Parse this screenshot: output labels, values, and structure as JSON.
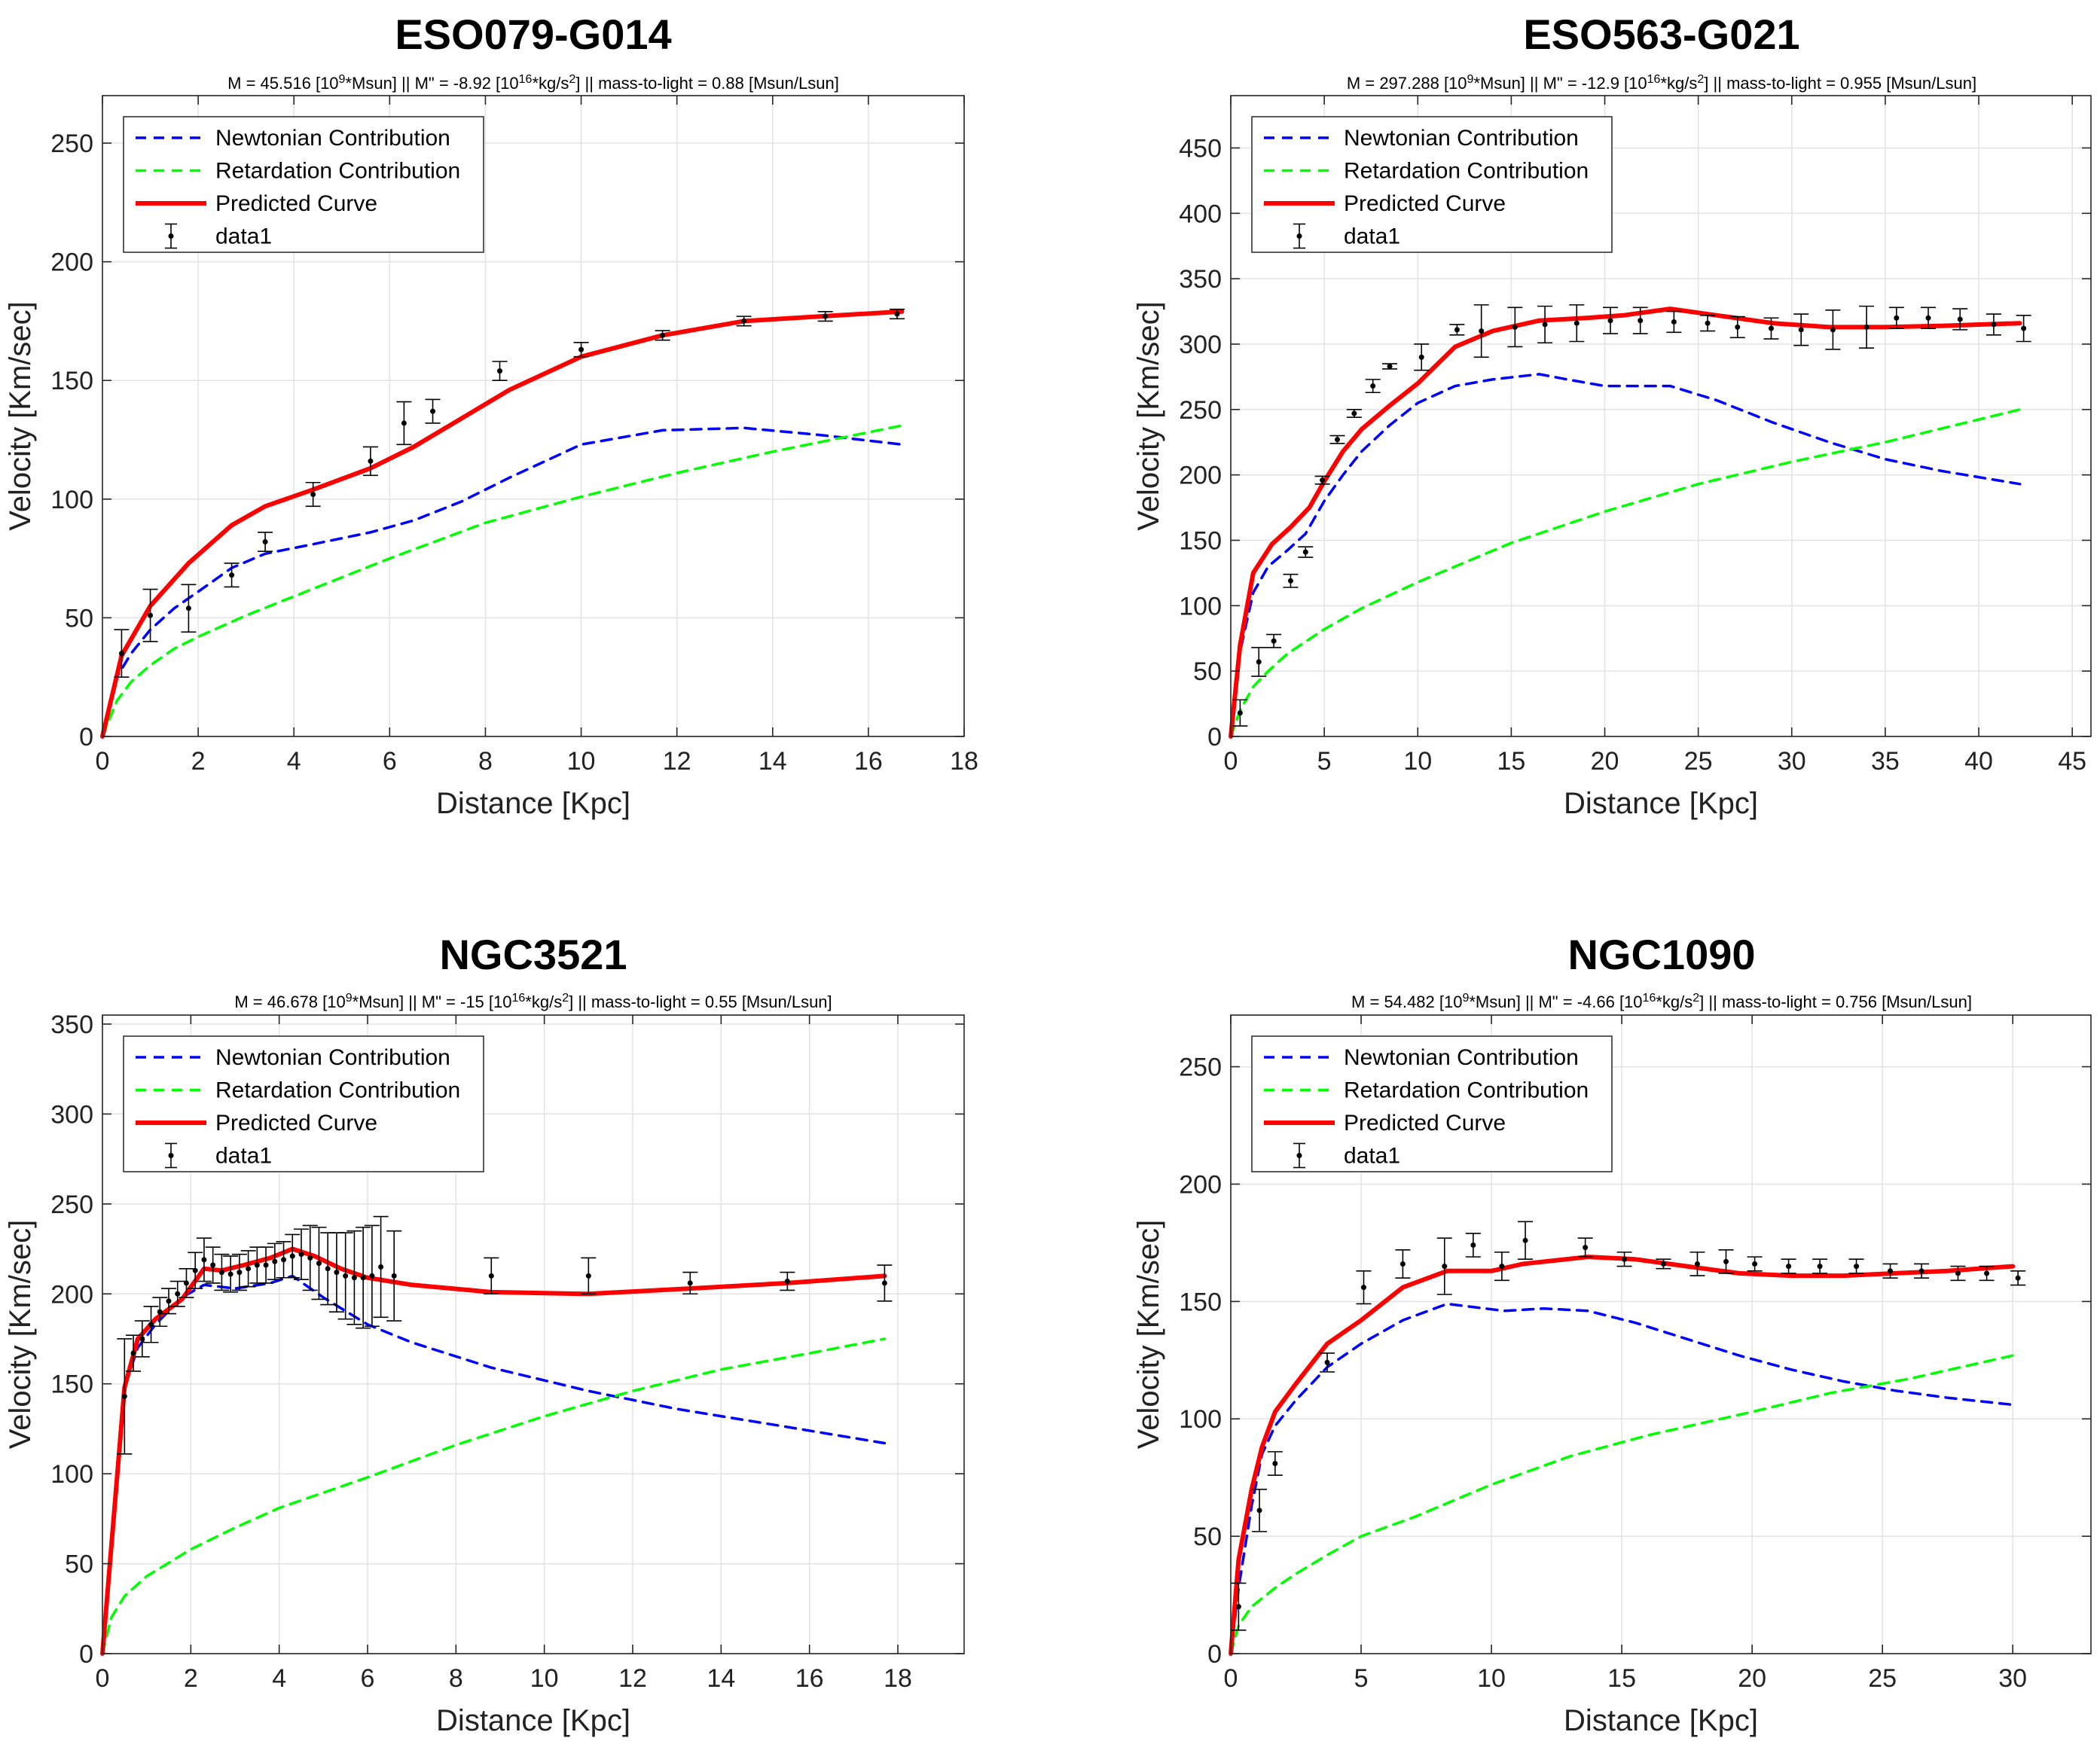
{
  "chart_data": [
    {
      "type": "line",
      "title": "ESO079-G014",
      "subtitle": {
        "mass": "M = 45.516 [10",
        "mass_sup": "9",
        "mass_unit": "*Msun]",
        "sep1": "||",
        "mdd": "M\" = -8.92 [10",
        "mdd_sup": "16",
        "mdd_unit": "*kg/s",
        "mdd_sup2": "2",
        "mdd_close": "]",
        "sep2": "||",
        "ml": "mass-to-light = 0.88 [Msun/Lsun]"
      },
      "xlabel": "Distance  [Kpc]",
      "ylabel": "Velocity  [Km/sec]",
      "xlim": [
        0,
        18
      ],
      "ylim": [
        0,
        270
      ],
      "xticks": [
        0,
        2,
        4,
        6,
        8,
        10,
        12,
        14,
        16,
        18
      ],
      "yticks": [
        0,
        50,
        100,
        150,
        200,
        250
      ],
      "legend": [
        "Newtonian Contribution",
        "Retardation Contribution",
        "Predicted Curve",
        "data1"
      ],
      "legend_position": "top-left",
      "grid": true,
      "series": [
        {
          "name": "Newtonian Contribution",
          "style": "dashed",
          "color": "#0000ff",
          "x": [
            0,
            0.3,
            0.6,
            1,
            1.5,
            2,
            2.7,
            3.4,
            4.4,
            5.6,
            6.5,
            7.5,
            8.5,
            10,
            11.7,
            13.4,
            15,
            16.7
          ],
          "y": [
            0,
            25,
            35,
            45,
            54,
            61,
            71,
            77,
            81,
            86,
            91,
            99,
            109,
            123,
            129,
            130,
            127,
            123
          ]
        },
        {
          "name": "Retardation Contribution",
          "style": "dashed",
          "color": "#00ff00",
          "x": [
            0,
            0.3,
            0.6,
            1,
            1.5,
            2,
            3,
            4,
            6,
            8,
            10,
            12,
            14,
            16.7
          ],
          "y": [
            0,
            15,
            23,
            30,
            37,
            42,
            51,
            59,
            75,
            90,
            101,
            111,
            120,
            131
          ]
        },
        {
          "name": "Predicted Curve",
          "style": "solid",
          "color": "#ff0000",
          "x": [
            0,
            0.4,
            1,
            1.8,
            2.7,
            3.4,
            4.4,
            5.6,
            6.5,
            7.5,
            8.5,
            10,
            11.7,
            13.4,
            15,
            16.7
          ],
          "y": [
            0,
            34,
            55,
            73,
            89,
            97,
            104,
            113,
            122,
            134,
            146,
            160,
            169,
            175,
            177,
            179
          ]
        },
        {
          "name": "data1",
          "style": "errorbar",
          "color": "#000000",
          "x": [
            0.4,
            1.0,
            1.8,
            2.7,
            3.4,
            4.4,
            5.6,
            6.3,
            6.9,
            8.3,
            10.0,
            11.7,
            13.4,
            15.1,
            16.6
          ],
          "y": [
            35,
            51,
            54,
            68,
            82,
            102,
            116,
            132,
            137,
            154,
            163,
            169,
            175,
            177,
            178
          ],
          "err": [
            10,
            11,
            10,
            5,
            4,
            5,
            6,
            9,
            5,
            4,
            3,
            2,
            2,
            2,
            2
          ]
        }
      ]
    },
    {
      "type": "line",
      "title": "ESO563-G021",
      "subtitle": {
        "mass": "M = 297.288 [10",
        "mass_sup": "9",
        "mass_unit": "*Msun]",
        "sep1": "||",
        "mdd": "M\" = -12.9 [10",
        "mdd_sup": "16",
        "mdd_unit": "*kg/s",
        "mdd_sup2": "2",
        "mdd_close": "]",
        "sep2": "||",
        "ml": "mass-to-light = 0.955 [Msun/Lsun]"
      },
      "xlabel": "Distance  [Kpc]",
      "ylabel": "Velocity  [Km/sec]",
      "xlim": [
        0,
        46
      ],
      "ylim": [
        0,
        490
      ],
      "xticks": [
        0,
        5,
        10,
        15,
        20,
        25,
        30,
        35,
        40,
        45
      ],
      "yticks": [
        0,
        50,
        100,
        150,
        200,
        250,
        300,
        350,
        400,
        450
      ],
      "legend": [
        "Newtonian Contribution",
        "Retardation Contribution",
        "Predicted Curve",
        "data1"
      ],
      "legend_position": "top-left",
      "grid": true,
      "series": [
        {
          "name": "Newtonian Contribution",
          "style": "dashed",
          "color": "#0000ff",
          "x": [
            0,
            0.5,
            1.2,
            2,
            3,
            4,
            5,
            6,
            7,
            8.5,
            10,
            12,
            14,
            16.5,
            18,
            20,
            23.5,
            26,
            29,
            32,
            35,
            38,
            42.2
          ],
          "y": [
            0,
            65,
            110,
            130,
            142,
            155,
            180,
            200,
            218,
            238,
            255,
            268,
            273,
            277,
            273,
            268,
            268,
            257,
            240,
            225,
            212,
            203,
            193
          ]
        },
        {
          "name": "Retardation Contribution",
          "style": "dashed",
          "color": "#00ff00",
          "x": [
            0,
            0.5,
            1.2,
            2,
            3,
            5,
            7,
            10,
            15,
            20,
            25,
            30,
            35,
            42.2
          ],
          "y": [
            0,
            20,
            38,
            50,
            63,
            82,
            98,
            118,
            148,
            172,
            193,
            210,
            225,
            250
          ]
        },
        {
          "name": "Predicted Curve",
          "style": "solid",
          "color": "#ff0000",
          "x": [
            0,
            0.5,
            1.2,
            2.2,
            3.2,
            4.2,
            5,
            6,
            7,
            8.5,
            10,
            12,
            14,
            16.5,
            19,
            21,
            23.5,
            26,
            29,
            32,
            35,
            38,
            42.2
          ],
          "y": [
            0,
            70,
            125,
            147,
            160,
            175,
            195,
            218,
            235,
            253,
            270,
            298,
            310,
            318,
            320,
            322,
            327,
            322,
            316,
            313,
            313,
            314,
            316
          ]
        },
        {
          "name": "data1",
          "style": "errorbar",
          "color": "#000000",
          "x": [
            0.5,
            1.5,
            2.3,
            3.2,
            4.0,
            4.9,
            5.7,
            6.6,
            7.6,
            8.5,
            10.2,
            12.1,
            13.4,
            15.2,
            16.8,
            18.5,
            20.3,
            21.9,
            23.7,
            25.5,
            27.1,
            28.9,
            30.5,
            32.2,
            34.0,
            35.6,
            37.3,
            39.0,
            40.8,
            42.4
          ],
          "y": [
            18,
            57,
            73,
            119,
            141,
            196,
            227,
            247,
            268,
            283,
            290,
            311,
            310,
            313,
            315,
            316,
            318,
            318,
            317,
            316,
            313,
            312,
            311,
            311,
            313,
            320,
            320,
            319,
            315,
            312
          ]
        },
        {
          "name": "data1_err",
          "style": "errorbar_err",
          "err": [
            10,
            11,
            5,
            5,
            4,
            3,
            3,
            3,
            5,
            2,
            10,
            4,
            20,
            15,
            14,
            14,
            10,
            10,
            8,
            6,
            8,
            8,
            12,
            15,
            16,
            8,
            8,
            8,
            8,
            10
          ]
        }
      ]
    },
    {
      "type": "line",
      "title": "NGC3521",
      "subtitle": {
        "mass": "M = 46.678 [10",
        "mass_sup": "9",
        "mass_unit": "*Msun]",
        "sep1": "||",
        "mdd": "M\" = -15 [10",
        "mdd_sup": "16",
        "mdd_unit": "*kg/s",
        "mdd_sup2": "2",
        "mdd_close": "]",
        "sep2": "||",
        "ml": "mass-to-light = 0.55 [Msun/Lsun]"
      },
      "xlabel": "Distance  [Kpc]",
      "ylabel": "Velocity  [Km/sec]",
      "xlim": [
        0,
        19.5
      ],
      "ylim": [
        0,
        355
      ],
      "xticks": [
        0,
        2,
        4,
        6,
        8,
        10,
        12,
        14,
        16,
        18
      ],
      "yticks": [
        0,
        50,
        100,
        150,
        200,
        250,
        300,
        350
      ],
      "legend": [
        "Newtonian Contribution",
        "Retardation Contribution",
        "Predicted Curve",
        "data1"
      ],
      "legend_position": "top-left",
      "grid": true,
      "series": [
        {
          "name": "Newtonian Contribution",
          "style": "dashed",
          "color": "#0000ff",
          "x": [
            0,
            0.5,
            0.8,
            1.2,
            1.8,
            2.3,
            3,
            3.8,
            4.3,
            5,
            6,
            7,
            8.8,
            11,
            13,
            15.5,
            17.7
          ],
          "y": [
            0,
            148,
            170,
            183,
            198,
            205,
            203,
            206,
            210,
            198,
            183,
            173,
            159,
            146,
            136,
            126,
            117
          ]
        },
        {
          "name": "Retardation Contribution",
          "style": "dashed",
          "color": "#00ff00",
          "x": [
            0,
            0.2,
            0.5,
            1,
            2,
            3,
            4,
            6,
            8,
            10,
            12,
            14,
            16,
            17.7
          ],
          "y": [
            0,
            20,
            32,
            43,
            58,
            70,
            81,
            98,
            116,
            132,
            146,
            158,
            167,
            175
          ]
        },
        {
          "name": "Predicted Curve",
          "style": "solid",
          "color": "#ff0000",
          "x": [
            0,
            0.5,
            0.8,
            1.2,
            1.8,
            2.3,
            2.7,
            3.2,
            3.8,
            4.3,
            4.8,
            5.4,
            6,
            7,
            8.8,
            11,
            13.3,
            15.5,
            17.7
          ],
          "y": [
            0,
            148,
            175,
            186,
            197,
            214,
            213,
            216,
            220,
            225,
            221,
            214,
            209,
            205,
            201,
            200,
            203,
            206,
            210
          ]
        },
        {
          "name": "data1",
          "style": "errorbar",
          "color": "#000000",
          "x": [
            0.5,
            0.7,
            0.9,
            1.1,
            1.3,
            1.5,
            1.7,
            1.9,
            2.1,
            2.3,
            2.5,
            2.7,
            2.9,
            3.1,
            3.3,
            3.5,
            3.7,
            3.9,
            4.1,
            4.3,
            4.5,
            4.7,
            4.9,
            5.1,
            5.3,
            5.5,
            5.7,
            5.9,
            6.1,
            6.3,
            6.6,
            8.8,
            11.0,
            13.3,
            15.5,
            17.7
          ],
          "y": [
            143,
            167,
            175,
            183,
            190,
            196,
            200,
            206,
            213,
            219,
            216,
            212,
            211,
            212,
            214,
            216,
            216,
            218,
            219,
            221,
            222,
            220,
            217,
            214,
            212,
            210,
            209,
            209,
            210,
            215,
            210,
            210,
            210,
            206,
            207,
            206
          ]
        },
        {
          "name": "data1_err",
          "style": "errorbar_err",
          "err": [
            32,
            10,
            10,
            10,
            8,
            7,
            7,
            8,
            10,
            12,
            10,
            10,
            10,
            10,
            10,
            10,
            10,
            10,
            10,
            12,
            14,
            18,
            20,
            20,
            22,
            24,
            26,
            28,
            28,
            28,
            25,
            10,
            10,
            6,
            5,
            10
          ]
        }
      ]
    },
    {
      "type": "line",
      "title": "NGC1090",
      "subtitle": {
        "mass": "M = 54.482 [10",
        "mass_sup": "9",
        "mass_unit": "*Msun]",
        "sep1": "||",
        "mdd": "M\" = -4.66 [10",
        "mdd_sup": "16",
        "mdd_unit": "*kg/s",
        "mdd_sup2": "2",
        "mdd_close": "]",
        "sep2": "||",
        "ml": "mass-to-light = 0.756 [Msun/Lsun]"
      },
      "xlabel": "Distance  [Kpc]",
      "ylabel": "Velocity  [Km/sec]",
      "xlim": [
        0,
        33
      ],
      "ylim": [
        0,
        272
      ],
      "xticks": [
        0,
        5,
        10,
        15,
        20,
        25,
        30
      ],
      "yticks": [
        0,
        50,
        100,
        150,
        200,
        250
      ],
      "legend": [
        "Newtonian Contribution",
        "Retardation Contribution",
        "Predicted Curve",
        "data1"
      ],
      "legend_position": "top-left",
      "grid": true,
      "series": [
        {
          "name": "Newtonian Contribution",
          "style": "dashed",
          "color": "#0000ff",
          "x": [
            0,
            0.3,
            0.8,
            1.2,
            1.7,
            2.5,
            3.7,
            5,
            6.6,
            8.3,
            10.5,
            12,
            13.7,
            15.5,
            17.5,
            19.5,
            21.5,
            23.5,
            25.5,
            27.5,
            30
          ],
          "y": [
            0,
            28,
            63,
            85,
            97,
            108,
            122,
            132,
            142,
            149,
            146,
            147,
            146,
            141,
            134,
            127,
            121,
            116,
            112,
            109,
            106
          ]
        },
        {
          "name": "Retardation Contribution",
          "style": "dashed",
          "color": "#00ff00",
          "x": [
            0,
            0.3,
            0.8,
            1.7,
            2.5,
            3.7,
            5,
            7,
            10,
            13,
            16,
            20,
            23,
            26,
            30
          ],
          "y": [
            0,
            12,
            20,
            28,
            34,
            42,
            50,
            58,
            72,
            84,
            93,
            103,
            111,
            117,
            127
          ]
        },
        {
          "name": "Predicted Curve",
          "style": "solid",
          "color": "#ff0000",
          "x": [
            0,
            0.3,
            0.8,
            1.2,
            1.7,
            2.5,
            3.7,
            5,
            6.6,
            8.3,
            10,
            11.2,
            13.7,
            15.5,
            17.5,
            19.5,
            21.5,
            23.5,
            25.5,
            27.5,
            30
          ],
          "y": [
            0,
            40,
            70,
            88,
            103,
            115,
            132,
            142,
            156,
            163,
            163,
            166,
            169,
            168,
            165,
            162,
            161,
            161,
            162,
            163,
            165
          ]
        },
        {
          "name": "data1",
          "style": "errorbar",
          "color": "#000000",
          "x": [
            0.3,
            1.1,
            1.7,
            3.7,
            5.1,
            6.6,
            8.2,
            9.3,
            10.4,
            11.3,
            13.6,
            15.1,
            16.6,
            17.9,
            19.0,
            20.1,
            21.4,
            22.6,
            24.0,
            25.3,
            26.5,
            27.9,
            29.0,
            30.2
          ],
          "y": [
            20,
            61,
            81,
            124,
            156,
            166,
            165,
            174,
            165,
            176,
            173,
            168,
            166,
            166,
            167,
            166,
            165,
            165,
            165,
            163,
            163,
            162,
            162,
            160
          ]
        },
        {
          "name": "data1_err",
          "style": "errorbar_err",
          "err": [
            10,
            9,
            5,
            4,
            7,
            6,
            12,
            5,
            6,
            8,
            4,
            3,
            2,
            5,
            5,
            3,
            3,
            3,
            3,
            3,
            3,
            3,
            3,
            3
          ]
        }
      ]
    }
  ]
}
